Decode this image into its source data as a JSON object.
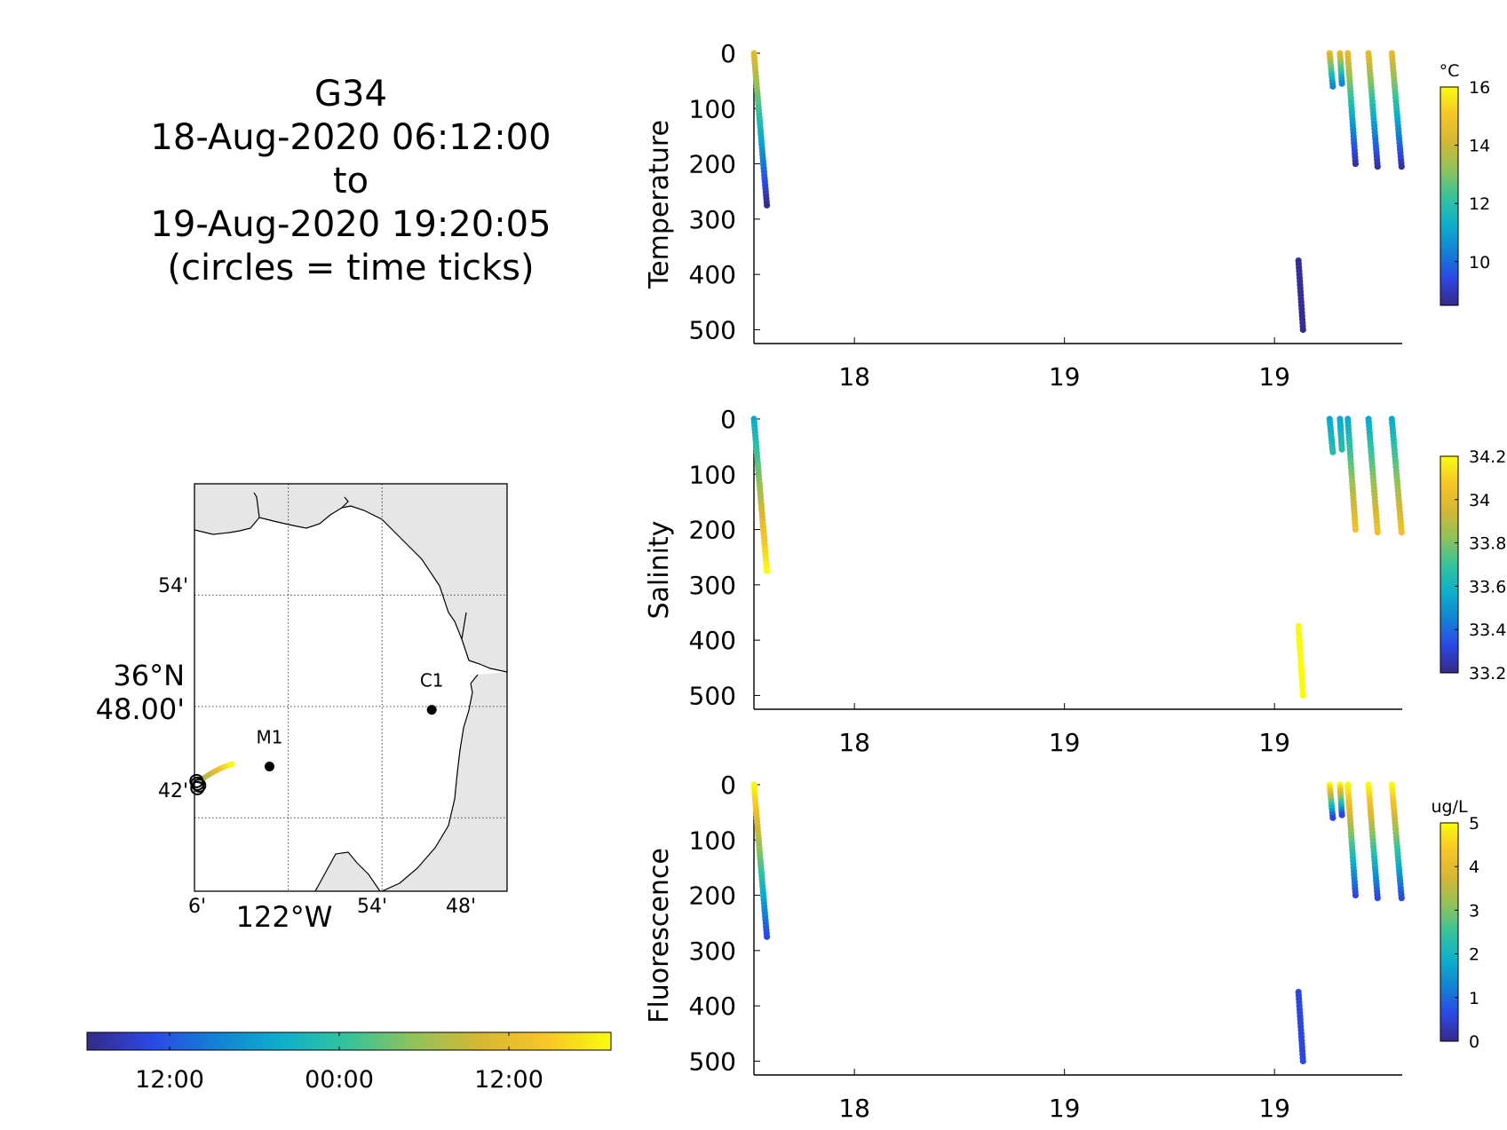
{
  "title": {
    "lines": [
      "G34",
      "18-Aug-2020 06:12:00",
      "to",
      "19-Aug-2020 19:20:05",
      "(circles = time ticks)"
    ]
  },
  "colors": {
    "parula": [
      "#352a87",
      "#2c48e5",
      "#1283d4",
      "#0eb0ca",
      "#37c39a",
      "#91c25a",
      "#d6b734",
      "#f7c528",
      "#f9fb0e"
    ],
    "land": "#e6e6e6",
    "axis": "#000000"
  },
  "map": {
    "lat_ticks": [
      "54'",
      "42'"
    ],
    "lat_main": [
      "36°N",
      "48.00'"
    ],
    "lon_ticks": [
      "6'",
      "54'",
      "48'"
    ],
    "lon_main": "122°W",
    "stations": [
      {
        "label": "M1",
        "lon": -122.02,
        "lat": 36.746
      },
      {
        "label": "C1",
        "lon": -121.847,
        "lat": 36.797
      }
    ],
    "time_colorbar_ticks": [
      "12:00",
      "00:00",
      "12:00"
    ]
  },
  "chart_data": [
    {
      "type": "scatter",
      "title": "",
      "ylabel": "Temperature",
      "xlabel": "",
      "x_tick_labels": [
        "18",
        "19",
        "19"
      ],
      "y_ticks": [
        0,
        100,
        200,
        300,
        400,
        500
      ],
      "ylim": [
        0,
        525
      ],
      "y_reversed": true,
      "colorbar": {
        "label": "°C",
        "range": [
          8.5,
          16
        ],
        "ticks": [
          10,
          12,
          14,
          16
        ]
      },
      "profiles": [
        {
          "t0": 0.0,
          "t1": 0.02,
          "d0": 0,
          "d1": 275,
          "c0": 14.5,
          "c1": 8.6
        },
        {
          "t0": 0.84,
          "t1": 0.847,
          "d0": 375,
          "d1": 500,
          "c0": 8.7,
          "c1": 8.6
        },
        {
          "t0": 0.888,
          "t1": 0.893,
          "d0": 0,
          "d1": 60,
          "c0": 14.5,
          "c1": 10.5
        },
        {
          "t0": 0.904,
          "t1": 0.907,
          "d0": 0,
          "d1": 55,
          "c0": 14.5,
          "c1": 10.5
        },
        {
          "t0": 0.916,
          "t1": 0.928,
          "d0": 0,
          "d1": 200,
          "c0": 14.5,
          "c1": 8.8
        },
        {
          "t0": 0.948,
          "t1": 0.962,
          "d0": 0,
          "d1": 205,
          "c0": 14.5,
          "c1": 8.8
        },
        {
          "t0": 0.984,
          "t1": 0.999,
          "d0": 0,
          "d1": 205,
          "c0": 14.5,
          "c1": 8.8
        }
      ]
    },
    {
      "type": "scatter",
      "title": "",
      "ylabel": "Salinity",
      "xlabel": "",
      "x_tick_labels": [
        "18",
        "19",
        "19"
      ],
      "y_ticks": [
        0,
        100,
        200,
        300,
        400,
        500
      ],
      "ylim": [
        0,
        525
      ],
      "y_reversed": true,
      "colorbar": {
        "label": "",
        "range": [
          33.2,
          34.2
        ],
        "ticks": [
          "33.2",
          "33.4",
          "33.6",
          "33.8",
          "34",
          "34.2"
        ]
      },
      "profiles": [
        {
          "t0": 0.0,
          "t1": 0.02,
          "d0": 0,
          "d1": 275,
          "c0": 33.55,
          "c1": 34.2
        },
        {
          "t0": 0.84,
          "t1": 0.847,
          "d0": 375,
          "d1": 500,
          "c0": 34.2,
          "c1": 34.2
        },
        {
          "t0": 0.888,
          "t1": 0.893,
          "d0": 0,
          "d1": 60,
          "c0": 33.55,
          "c1": 33.65
        },
        {
          "t0": 0.904,
          "t1": 0.907,
          "d0": 0,
          "d1": 55,
          "c0": 33.55,
          "c1": 33.65
        },
        {
          "t0": 0.916,
          "t1": 0.928,
          "d0": 0,
          "d1": 200,
          "c0": 33.55,
          "c1": 34.05
        },
        {
          "t0": 0.948,
          "t1": 0.962,
          "d0": 0,
          "d1": 205,
          "c0": 33.55,
          "c1": 34.05
        },
        {
          "t0": 0.984,
          "t1": 0.999,
          "d0": 0,
          "d1": 205,
          "c0": 33.55,
          "c1": 34.05
        }
      ]
    },
    {
      "type": "scatter",
      "title": "",
      "ylabel": "Fluorescence",
      "xlabel": "",
      "x_tick_labels": [
        "18",
        "19",
        "19"
      ],
      "y_ticks": [
        0,
        100,
        200,
        300,
        400,
        500
      ],
      "ylim": [
        0,
        525
      ],
      "y_reversed": true,
      "colorbar": {
        "label": "ug/L",
        "range": [
          0,
          5
        ],
        "ticks": [
          0,
          1,
          2,
          3,
          4,
          5
        ]
      },
      "profiles": [
        {
          "t0": 0.0,
          "t1": 0.02,
          "d0": 0,
          "d1": 275,
          "c0": 5,
          "c1": 0.6
        },
        {
          "t0": 0.84,
          "t1": 0.847,
          "d0": 375,
          "d1": 500,
          "c0": 0.6,
          "c1": 0.6
        },
        {
          "t0": 0.888,
          "t1": 0.893,
          "d0": 0,
          "d1": 60,
          "c0": 5,
          "c1": 0.6
        },
        {
          "t0": 0.904,
          "t1": 0.907,
          "d0": 0,
          "d1": 55,
          "c0": 5,
          "c1": 0.6
        },
        {
          "t0": 0.916,
          "t1": 0.928,
          "d0": 0,
          "d1": 200,
          "c0": 5,
          "c1": 0.6
        },
        {
          "t0": 0.948,
          "t1": 0.962,
          "d0": 0,
          "d1": 205,
          "c0": 5,
          "c1": 0.6
        },
        {
          "t0": 0.984,
          "t1": 0.999,
          "d0": 0,
          "d1": 205,
          "c0": 5,
          "c1": 0.6
        }
      ]
    }
  ]
}
